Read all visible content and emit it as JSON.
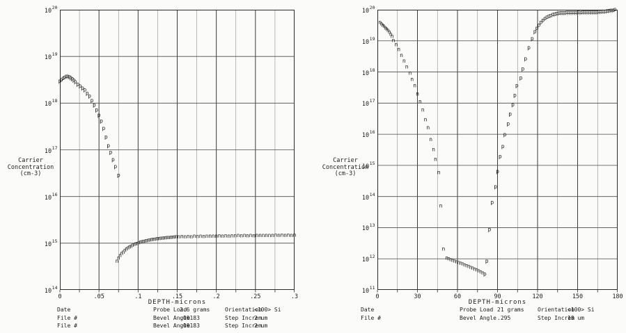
{
  "chart_data": [
    {
      "type": "scatter",
      "title": "",
      "x_label": "DEPTH-microns",
      "y_label": [
        "Carrier",
        "Concentration",
        "(cm-3)"
      ],
      "x_min": 0,
      "x_max": 0.3,
      "x_major_ticks": [
        0,
        0.05,
        0.1,
        0.15,
        0.2,
        0.25,
        0.3
      ],
      "x_tick_labels": [
        "0",
        ".05",
        ".1",
        ".15",
        ".2",
        ".25",
        ".3"
      ],
      "x_minor_step": 0.025,
      "y_log_top_exp": 20,
      "y_log_bottom_exp": 14,
      "grid": true,
      "series": [
        {
          "name": "p-type",
          "marker": "p",
          "points": [
            [
              0.0,
              3e+18
            ],
            [
              0.002,
              3.2e+18
            ],
            [
              0.004,
              3.45e+18
            ],
            [
              0.006,
              3.65e+18
            ],
            [
              0.008,
              3.8e+18
            ],
            [
              0.01,
              3.85e+18
            ],
            [
              0.012,
              3.75e+18
            ],
            [
              0.014,
              3.6e+18
            ],
            [
              0.016,
              3.4e+18
            ],
            [
              0.018,
              3.15e+18
            ],
            [
              0.02,
              2.9e+18
            ],
            [
              0.023,
              2.6e+18
            ],
            [
              0.026,
              2.35e+18
            ],
            [
              0.029,
              2.15e+18
            ],
            [
              0.032,
              1.95e+18
            ],
            [
              0.035,
              1.65e+18
            ],
            [
              0.038,
              1.45e+18
            ],
            [
              0.041,
              1.15e+18
            ],
            [
              0.044,
              9.2e+17
            ],
            [
              0.047,
              7.2e+17
            ],
            [
              0.05,
              5.6e+17
            ],
            [
              0.053,
              4.2e+17
            ],
            [
              0.056,
              2.9e+17
            ],
            [
              0.059,
              1.9e+17
            ],
            [
              0.062,
              1.25e+17
            ],
            [
              0.065,
              8.9e+16
            ],
            [
              0.068,
              6.2e+16
            ],
            [
              0.071,
              4.4e+16
            ],
            [
              0.075,
              2.9e+16
            ]
          ]
        },
        {
          "name": "n-type",
          "marker": "n",
          "points": [
            [
              0.073,
              420000000000000.0
            ],
            [
              0.075,
              490000000000000.0
            ],
            [
              0.077,
              550000000000000.0
            ],
            [
              0.079,
              610000000000000.0
            ],
            [
              0.081,
              660000000000000.0
            ],
            [
              0.083,
              710000000000000.0
            ],
            [
              0.085,
              760000000000000.0
            ],
            [
              0.087,
              800000000000000.0
            ],
            [
              0.089,
              840000000000000.0
            ],
            [
              0.091,
              880000000000000.0
            ],
            [
              0.093,
              920000000000000.0
            ],
            [
              0.095,
              950000000000000.0
            ],
            [
              0.097,
              980000000000000.0
            ],
            [
              0.099,
              1010000000000000.0
            ],
            [
              0.101,
              1040000000000000.0
            ],
            [
              0.103,
              1070000000000000.0
            ],
            [
              0.105,
              1090000000000000.0
            ],
            [
              0.107,
              1120000000000000.0
            ],
            [
              0.109,
              1140000000000000.0
            ],
            [
              0.111,
              1160000000000000.0
            ],
            [
              0.113,
              1180000000000000.0
            ],
            [
              0.115,
              1190000000000000.0
            ],
            [
              0.117,
              1210000000000000.0
            ],
            [
              0.119,
              1230000000000000.0
            ],
            [
              0.121,
              1240000000000000.0
            ],
            [
              0.123,
              1260000000000000.0
            ],
            [
              0.125,
              1270000000000000.0
            ],
            [
              0.127,
              1280000000000000.0
            ],
            [
              0.129,
              1300000000000000.0
            ],
            [
              0.131,
              1310000000000000.0
            ],
            [
              0.133,
              1320000000000000.0
            ],
            [
              0.135,
              1330000000000000.0
            ],
            [
              0.137,
              1340000000000000.0
            ],
            [
              0.139,
              1350000000000000.0
            ],
            [
              0.141,
              1350000000000000.0
            ],
            [
              0.143,
              1360000000000000.0
            ],
            [
              0.145,
              1370000000000000.0
            ],
            [
              0.147,
              1380000000000000.0
            ],
            [
              0.149,
              1380000000000000.0
            ],
            [
              0.152,
              1390000000000000.0
            ],
            [
              0.156,
              1410000000000000.0
            ],
            [
              0.16,
              1390000000000000.0
            ],
            [
              0.164,
              1420000000000000.0
            ],
            [
              0.168,
              1400000000000000.0
            ],
            [
              0.172,
              1430000000000000.0
            ],
            [
              0.176,
              1410000000000000.0
            ],
            [
              0.18,
              1440000000000000.0
            ],
            [
              0.184,
              1420000000000000.0
            ],
            [
              0.188,
              1450000000000000.0
            ],
            [
              0.192,
              1430000000000000.0
            ],
            [
              0.196,
              1450000000000000.0
            ],
            [
              0.2,
              1440000000000000.0
            ],
            [
              0.204,
              1460000000000000.0
            ],
            [
              0.208,
              1440000000000000.0
            ],
            [
              0.212,
              1470000000000000.0
            ],
            [
              0.216,
              1450000000000000.0
            ],
            [
              0.22,
              1470000000000000.0
            ],
            [
              0.224,
              1460000000000000.0
            ],
            [
              0.228,
              1480000000000000.0
            ],
            [
              0.232,
              1460000000000000.0
            ],
            [
              0.236,
              1480000000000000.0
            ],
            [
              0.24,
              1470000000000000.0
            ],
            [
              0.244,
              1490000000000000.0
            ],
            [
              0.248,
              1470000000000000.0
            ],
            [
              0.252,
              1490000000000000.0
            ],
            [
              0.256,
              1480000000000000.0
            ],
            [
              0.26,
              1500000000000000.0
            ],
            [
              0.264,
              1480000000000000.0
            ],
            [
              0.268,
              1500000000000000.0
            ],
            [
              0.272,
              1490000000000000.0
            ],
            [
              0.276,
              1510000000000000.0
            ],
            [
              0.28,
              1490000000000000.0
            ],
            [
              0.284,
              1510000000000000.0
            ],
            [
              0.288,
              1500000000000000.0
            ],
            [
              0.292,
              1520000000000000.0
            ],
            [
              0.296,
              1500000000000000.0
            ],
            [
              0.3,
              1520000000000000.0
            ]
          ]
        }
      ],
      "footer_rows": [
        [
          "Date",
          "Probe Load",
          "2.6 grams",
          "Orientation",
          "<100> Si"
        ],
        [
          "File #",
          "Bevel Angle",
          ".00183",
          "Step Increm",
          "2 um"
        ],
        [
          "File #",
          "Bevel Angle",
          ".00183",
          "Step Increm",
          "2 um"
        ]
      ]
    },
    {
      "type": "scatter",
      "title": "",
      "x_label": "DEPTH-microns",
      "y_label": [
        "Carrier",
        "Concentration",
        "(cm-3)"
      ],
      "x_min": 0,
      "x_max": 180,
      "x_major_ticks": [
        0,
        30,
        60,
        90,
        120,
        150,
        180
      ],
      "x_tick_labels": [
        "0",
        "30",
        "60",
        "90",
        "120",
        "150",
        "180"
      ],
      "x_minor_step": 15,
      "y_log_top_exp": 20,
      "y_log_bottom_exp": 11,
      "grid": true,
      "series": [
        {
          "name": "n-type",
          "marker": "n",
          "points": [
            [
              2,
              4e+19
            ],
            [
              3,
              3.65e+19
            ],
            [
              4,
              3.3e+19
            ],
            [
              5,
              3e+19
            ],
            [
              6,
              2.7e+19
            ],
            [
              7,
              2.45e+19
            ],
            [
              8,
              2.2e+19
            ],
            [
              9,
              1.95e+19
            ],
            [
              10,
              1.7e+19
            ],
            [
              11,
              1.45e+19
            ],
            [
              12,
              1.05e+19
            ],
            [
              14,
              7.7e+18
            ],
            [
              16,
              5.4e+18
            ],
            [
              18,
              3.5e+18
            ],
            [
              20,
              2.3e+18
            ],
            [
              22,
              1.5e+18
            ],
            [
              24.5,
              9.4e+17
            ],
            [
              26,
              5.9e+17
            ],
            [
              28,
              3.7e+17
            ],
            [
              30,
              2e+17
            ],
            [
              32,
              1.14e+17
            ],
            [
              34,
              6.1e+16
            ],
            [
              36,
              3e+16
            ],
            [
              38,
              1.65e+16
            ],
            [
              40,
              7000000000000000.0
            ],
            [
              42,
              3300000000000000.0
            ],
            [
              43.5,
              1600000000000000.0
            ],
            [
              46,
              600000000000000.0
            ],
            [
              47.5,
              51000000000000.0
            ],
            [
              49.5,
              2100000000000.0
            ],
            [
              52,
              1080000000000.0
            ],
            [
              53.5,
              1020000000000.0
            ],
            [
              55,
              960000000000.0
            ],
            [
              56.5,
              910000000000.0
            ],
            [
              58,
              860000000000.0
            ],
            [
              59.5,
              810000000000.0
            ],
            [
              61,
              770000000000.0
            ],
            [
              62.5,
              730000000000.0
            ],
            [
              64,
              690000000000.0
            ],
            [
              65.5,
              650000000000.0
            ],
            [
              67,
              610000000000.0
            ],
            [
              68.5,
              580000000000.0
            ],
            [
              70,
              540000000000.0
            ],
            [
              71.5,
              510000000000.0
            ],
            [
              73,
              480000000000.0
            ],
            [
              74.5,
              450000000000.0
            ],
            [
              76,
              420000000000.0
            ],
            [
              77.5,
              390000000000.0
            ],
            [
              79,
              360000000000.0
            ]
          ]
        },
        {
          "name": "p-type",
          "marker": "p",
          "points": [
            [
              80.5,
              330000000000.0
            ],
            [
              82,
              850000000000.0
            ],
            [
              84,
              8900000000000.0
            ],
            [
              86,
              66000000000000.0
            ],
            [
              88.5,
              210000000000000.0
            ],
            [
              90,
              660000000000000.0
            ],
            [
              92,
              1950000000000000.0
            ],
            [
              94,
              4200000000000000.0
            ],
            [
              95.5,
              1e+16
            ],
            [
              98,
              2.2e+16
            ],
            [
              99.5,
              4.5e+16
            ],
            [
              101.5,
              9.2e+16
            ],
            [
              103,
              1.8e+17
            ],
            [
              104.5,
              3.7e+17
            ],
            [
              107.5,
              6.5e+17
            ],
            [
              109,
              1.3e+18
            ],
            [
              111,
              2.7e+18
            ],
            [
              113.5,
              6.2e+18
            ],
            [
              116,
              1.2e+19
            ],
            [
              118,
              2e+19
            ],
            [
              119.5,
              2.6e+19
            ],
            [
              121,
              3.3e+19
            ],
            [
              122.5,
              4e+19
            ],
            [
              124,
              4.7e+19
            ],
            [
              125.5,
              5.3e+19
            ],
            [
              127,
              5.9e+19
            ],
            [
              128.5,
              6.4e+19
            ],
            [
              130,
              6.8e+19
            ],
            [
              131.5,
              7.2e+19
            ],
            [
              133,
              7.5e+19
            ],
            [
              134.5,
              7.8e+19
            ],
            [
              136,
              8e+19
            ],
            [
              137.5,
              8.2e+19
            ],
            [
              139,
              8.3e+19
            ],
            [
              140.5,
              8.3e+19
            ],
            [
              142,
              8.4e+19
            ],
            [
              143.5,
              8.4e+19
            ],
            [
              145,
              8.5e+19
            ],
            [
              146.5,
              8.4e+19
            ],
            [
              148,
              8.5e+19
            ],
            [
              149.5,
              8.5e+19
            ],
            [
              151,
              8.6e+19
            ],
            [
              152.5,
              8.5e+19
            ],
            [
              154,
              8.6e+19
            ],
            [
              155.5,
              8.6e+19
            ],
            [
              157,
              8.7e+19
            ],
            [
              158.5,
              8.6e+19
            ],
            [
              160,
              8.7e+19
            ],
            [
              161.5,
              8.7e+19
            ],
            [
              163,
              8.8e+19
            ],
            [
              164.5,
              8.8e+19
            ],
            [
              166,
              8.9e+19
            ],
            [
              167.5,
              9e+19
            ],
            [
              169,
              9.1e+19
            ],
            [
              170.5,
              9.2e+19
            ],
            [
              172,
              9.4e+19
            ],
            [
              173.5,
              9.6e+19
            ],
            [
              175,
              9.8e+19
            ],
            [
              176.5,
              1e+20
            ],
            [
              178,
              1.03e+20
            ]
          ]
        }
      ],
      "footer_rows": [
        [
          "Date",
          "Probe Load",
          "21 grams",
          "Orientation",
          "<100> Si"
        ],
        [
          "File #",
          "Bevel Angle",
          ".295",
          "Step Increm",
          "10 um"
        ]
      ]
    }
  ],
  "style": {
    "marker_color": "#161616",
    "grid_minor_color": "#8a8a8a",
    "grid_major_color": "#3a3a3a",
    "background": "#fbfbfa"
  }
}
